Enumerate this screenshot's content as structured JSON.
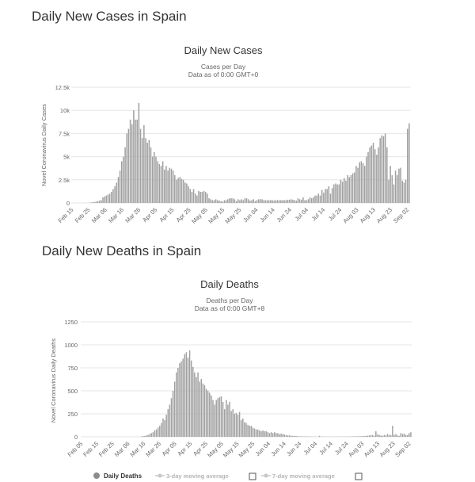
{
  "page": {
    "cases_heading": "Daily New Cases in Spain",
    "deaths_heading": "Daily New Deaths in Spain"
  },
  "chart_data": [
    {
      "type": "bar",
      "title": "Daily New Cases",
      "subtitle_line1": "Cases per Day",
      "subtitle_line2": "Data as of 0:00 GMT+0",
      "ylabel": "Novel Coronavirus Daily Cases",
      "xlabel": "",
      "ylim": [
        0,
        12500
      ],
      "yticks": [
        0,
        2500,
        5000,
        7500,
        10000,
        12500
      ],
      "ytick_labels": [
        "0",
        "2.5k",
        "5k",
        "7.5k",
        "10k",
        "12.5k"
      ],
      "x_tick_labels": [
        "Feb 15",
        "Feb 25",
        "Mar 06",
        "Mar 16",
        "Mar 26",
        "Apr 05",
        "Apr 15",
        "Apr 25",
        "May 05",
        "May 15",
        "May 25",
        "Jun 04",
        "Jun 14",
        "Jun 24",
        "Jul 04",
        "Jul 14",
        "Jul 24",
        "Aug 03",
        "Aug 13",
        "Aug 23",
        "Sep 02"
      ],
      "x_start": "Feb 15",
      "x_end": "Sep 04",
      "grid": true,
      "color": "#a0a0a0",
      "series": [
        {
          "values": [
            0,
            0,
            0,
            0,
            0,
            0,
            0,
            0,
            0,
            0,
            30,
            50,
            80,
            100,
            150,
            200,
            250,
            300,
            600,
            700,
            800,
            900,
            1000,
            1200,
            1500,
            1800,
            2200,
            2800,
            3500,
            4500,
            5000,
            6000,
            7500,
            8000,
            9000,
            8500,
            10000,
            9000,
            9000,
            10800,
            8000,
            7000,
            8400,
            7000,
            6500,
            6800,
            6000,
            5000,
            5500,
            5000,
            4500,
            4200,
            4000,
            4500,
            3600,
            4000,
            3500,
            3800,
            3700,
            3500,
            3000,
            2500,
            2700,
            2800,
            2600,
            2500,
            2200,
            2100,
            1800,
            1500,
            1200,
            1500,
            1000,
            800,
            1300,
            1200,
            1200,
            1300,
            1200,
            1000,
            500,
            400,
            300,
            300,
            400,
            300,
            250,
            200,
            150,
            300,
            300,
            400,
            500,
            500,
            500,
            400,
            200,
            400,
            300,
            400,
            300,
            500,
            500,
            400,
            250,
            300,
            400,
            200,
            300,
            400,
            400,
            400,
            300,
            300,
            300,
            300,
            300,
            300,
            250,
            300,
            300,
            300,
            300,
            300,
            300,
            300,
            350,
            350,
            400,
            350,
            300,
            250,
            500,
            400,
            350,
            600,
            300,
            300,
            400,
            600,
            500,
            600,
            800,
            800,
            1000,
            800,
            1400,
            1100,
            1500,
            1500,
            1800,
            1000,
            1600,
            2000,
            2100,
            2000,
            2000,
            2500,
            2300,
            2700,
            2400,
            3000,
            2800,
            3000,
            3200,
            3300,
            4000,
            3800,
            4400,
            4500,
            4300,
            4000,
            5000,
            5500,
            6000,
            6200,
            6500,
            5800,
            5200,
            6000,
            7000,
            7300,
            7200,
            7500,
            6000,
            2500,
            4000,
            3000,
            2000,
            3500,
            3000,
            3700,
            3800,
            2400,
            2200,
            2500,
            8000,
            8600
          ]
        }
      ]
    },
    {
      "type": "bar",
      "title": "Daily Deaths",
      "subtitle_line1": "Deaths per Day",
      "subtitle_line2": "Data as of 0:00 GMT+8",
      "ylabel": "Novel Coronavirus Daily Deaths",
      "xlabel": "",
      "ylim": [
        0,
        1250
      ],
      "yticks": [
        0,
        250,
        500,
        750,
        1000,
        1250
      ],
      "ytick_labels": [
        "0",
        "250",
        "500",
        "750",
        "1000",
        "1250"
      ],
      "x_tick_labels": [
        "Feb 05",
        "Feb 15",
        "Feb 25",
        "Mar 06",
        "Mar 16",
        "Mar 26",
        "Apr 05",
        "Apr 15",
        "Apr 25",
        "May 05",
        "May 15",
        "May 25",
        "Jun 04",
        "Jun 14",
        "Jun 24",
        "Jul 04",
        "Jul 14",
        "Jul 24",
        "Aug 03",
        "Aug 13",
        "Aug 23",
        "Sep 02"
      ],
      "x_start": "Feb 05",
      "x_end": "Sep 04",
      "grid": true,
      "color": "#a0a0a0",
      "series": [
        {
          "name": "Daily Deaths",
          "values": [
            0,
            0,
            0,
            0,
            0,
            0,
            0,
            0,
            0,
            0,
            0,
            0,
            0,
            0,
            0,
            0,
            0,
            0,
            0,
            0,
            0,
            0,
            0,
            0,
            0,
            0,
            0,
            0,
            0,
            0,
            0,
            0,
            0,
            0,
            0,
            0,
            5,
            8,
            10,
            15,
            20,
            30,
            40,
            50,
            70,
            80,
            100,
            120,
            150,
            200,
            180,
            240,
            300,
            350,
            420,
            500,
            600,
            700,
            750,
            800,
            820,
            850,
            900,
            920,
            860,
            940,
            830,
            760,
            700,
            650,
            700,
            600,
            630,
            580,
            560,
            520,
            500,
            480,
            450,
            400,
            350,
            400,
            420,
            430,
            440,
            380,
            300,
            400,
            350,
            380,
            280,
            300,
            250,
            260,
            240,
            270,
            180,
            200,
            160,
            150,
            130,
            120,
            120,
            100,
            90,
            80,
            80,
            70,
            60,
            70,
            60,
            60,
            50,
            40,
            50,
            40,
            50,
            40,
            40,
            30,
            35,
            30,
            25,
            20,
            15,
            15,
            12,
            10,
            10,
            8,
            6,
            5,
            5,
            5,
            4,
            4,
            4,
            3,
            3,
            2,
            2,
            2,
            2,
            10,
            4,
            3,
            2,
            2,
            2,
            2,
            2,
            2,
            2,
            2,
            2,
            2,
            3,
            2,
            2,
            2,
            3,
            3,
            3,
            4,
            5,
            5,
            5,
            6,
            6,
            7,
            8,
            10,
            12,
            15,
            18,
            20,
            10,
            60,
            25,
            20,
            15,
            10,
            20,
            15,
            30,
            20,
            16,
            120,
            20,
            30,
            15,
            10,
            40,
            30,
            35,
            20,
            18,
            40,
            50
          ]
        }
      ],
      "legend": {
        "position": "bottom",
        "items": [
          "Daily Deaths",
          "3-day moving average",
          "7-day moving average"
        ]
      }
    }
  ]
}
